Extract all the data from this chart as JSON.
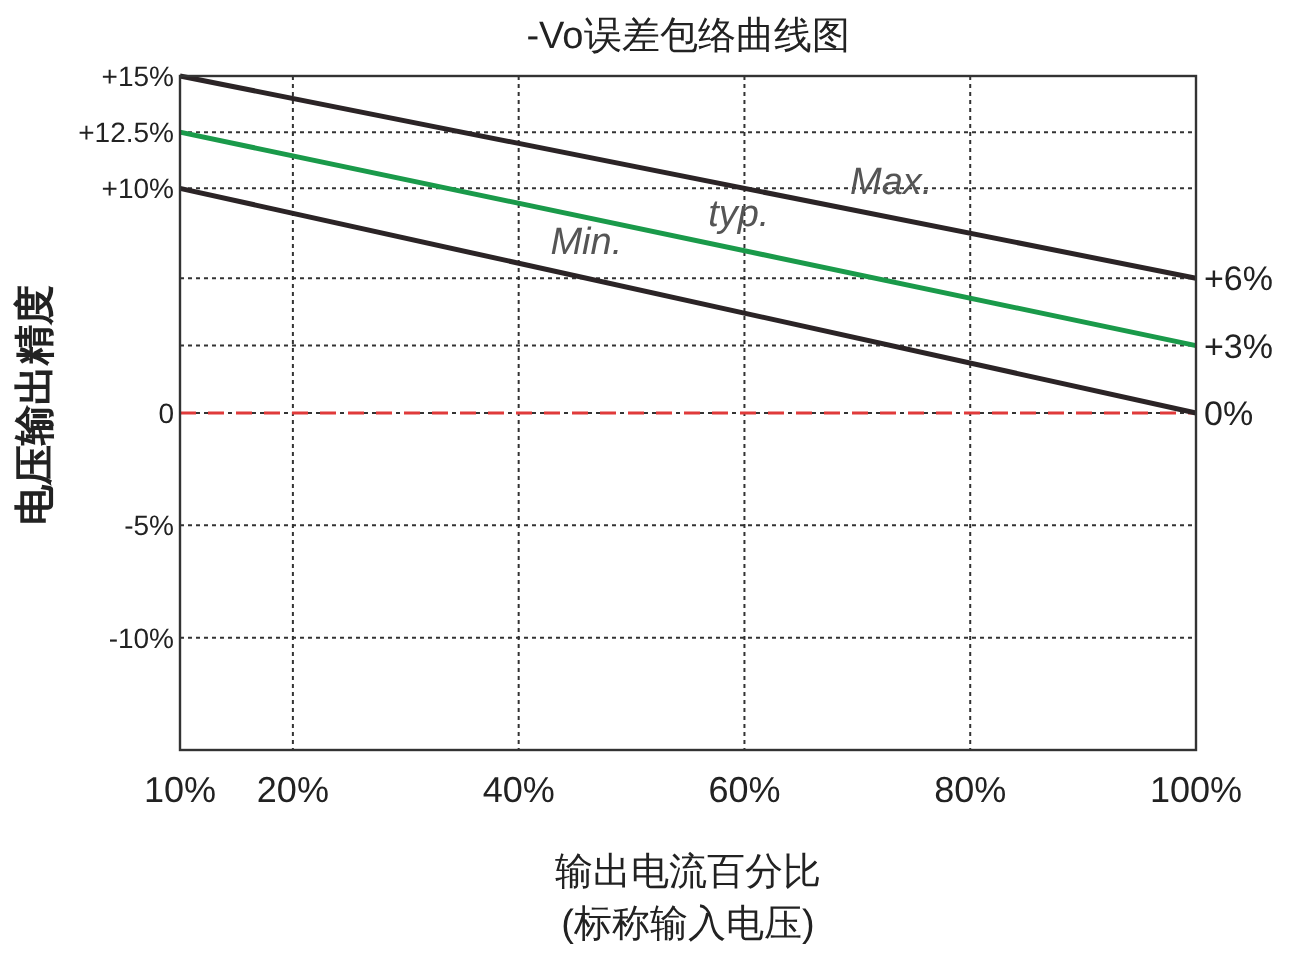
{
  "chart_data": {
    "type": "line",
    "title": "-Vo误差包络曲线图",
    "xlabel": "输出电流百分比",
    "ylabel": "电压输出精度",
    "x": [
      10,
      100
    ],
    "series": [
      {
        "name": "Max.",
        "color": "#2b2426",
        "values": [
          15,
          6
        ]
      },
      {
        "name": "typ.",
        "color": "#1a9a4a",
        "values": [
          12.5,
          3
        ]
      },
      {
        "name": "Min.",
        "color": "#2b2426",
        "values": [
          10,
          0
        ]
      }
    ],
    "xlim": [
      10,
      100
    ],
    "ylim": [
      -15,
      15
    ],
    "y2lim": [
      -15,
      15
    ],
    "xticks": [
      {
        "value": 10,
        "label": "10%"
      },
      {
        "value": 20,
        "label": "20%"
      },
      {
        "value": 40,
        "label": "40%"
      },
      {
        "value": 60,
        "label": "60%"
      },
      {
        "value": 80,
        "label": "80%"
      },
      {
        "value": 100,
        "label": "100%"
      }
    ],
    "yticks": [
      {
        "value": 15,
        "label": "+15%"
      },
      {
        "value": 12.5,
        "label": "+12.5%"
      },
      {
        "value": 10,
        "label": "+10%"
      },
      {
        "value": 0,
        "label": "0"
      },
      {
        "value": -5,
        "label": "-5%"
      },
      {
        "value": -10,
        "label": "-10%"
      }
    ],
    "y2ticks": [
      {
        "value": 6,
        "label": "+6%"
      },
      {
        "value": 3,
        "label": "+3%"
      },
      {
        "value": 0,
        "label": "0%"
      }
    ],
    "grid": true,
    "line_style": "solid",
    "marker": "none",
    "ref_lines": [
      {
        "axis": "y",
        "value": 0,
        "color": "#e03a3a",
        "line_style": "dashed"
      }
    ],
    "annotations": [
      "(标称输入电压)"
    ]
  }
}
